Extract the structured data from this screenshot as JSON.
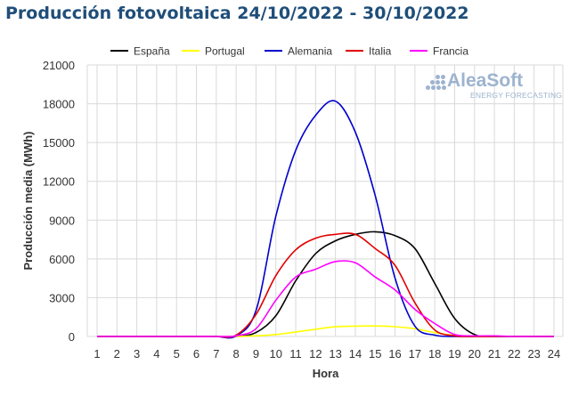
{
  "title": "Producción fotovoltaica 24/10/2022 - 30/10/2022",
  "logo": {
    "name": "AleaSoft",
    "tagline": "ENERGY FORECASTING",
    "icon": "dots-logo-icon"
  },
  "colors": {
    "title": "#1f4e79",
    "grid": "#d9d9d9",
    "logo": "#9db3cf"
  },
  "chart_data": {
    "type": "line",
    "title": "Producción fotovoltaica 24/10/2022 - 30/10/2022",
    "xlabel": "Hora",
    "ylabel": "Producción media (MWh)",
    "x": [
      1,
      2,
      3,
      4,
      5,
      6,
      7,
      8,
      9,
      10,
      11,
      12,
      13,
      14,
      15,
      16,
      17,
      18,
      19,
      20,
      21,
      22,
      23,
      24
    ],
    "xlim": [
      1,
      24
    ],
    "ylim": [
      0,
      21000
    ],
    "yticks": [
      0,
      3000,
      6000,
      9000,
      12000,
      15000,
      18000,
      21000
    ],
    "yticklabels": [
      "0",
      "3000",
      "6000",
      "9000",
      "12000",
      "15000",
      "18000",
      "21000"
    ],
    "grid": true,
    "legend": "top",
    "series": [
      {
        "name": "España",
        "color": "#000000",
        "values": [
          0,
          0,
          0,
          0,
          0,
          0,
          0,
          0,
          300,
          1600,
          4300,
          6400,
          7400,
          7900,
          8100,
          7800,
          6800,
          4100,
          1400,
          150,
          0,
          0,
          0,
          0
        ]
      },
      {
        "name": "Portugal",
        "color": "#ffff00",
        "values": [
          0,
          0,
          0,
          0,
          0,
          0,
          0,
          0,
          50,
          150,
          350,
          560,
          750,
          800,
          810,
          760,
          600,
          300,
          80,
          0,
          0,
          0,
          0,
          0
        ]
      },
      {
        "name": "Alemania",
        "color": "#0000cc",
        "values": [
          0,
          0,
          0,
          0,
          0,
          0,
          0,
          50,
          2000,
          9300,
          14400,
          17100,
          18200,
          15800,
          10900,
          4500,
          800,
          100,
          0,
          0,
          0,
          0,
          0,
          0
        ]
      },
      {
        "name": "Italia",
        "color": "#e00000",
        "values": [
          0,
          0,
          0,
          0,
          0,
          0,
          0,
          100,
          1700,
          4700,
          6700,
          7600,
          7900,
          7900,
          6800,
          5500,
          2600,
          500,
          50,
          0,
          0,
          0,
          0,
          0
        ]
      },
      {
        "name": "Francia",
        "color": "#ff00ff",
        "values": [
          0,
          0,
          0,
          0,
          0,
          0,
          0,
          50,
          600,
          2800,
          4600,
          5200,
          5800,
          5700,
          4600,
          3600,
          2100,
          1000,
          150,
          50,
          50,
          0,
          0,
          0
        ]
      }
    ]
  }
}
